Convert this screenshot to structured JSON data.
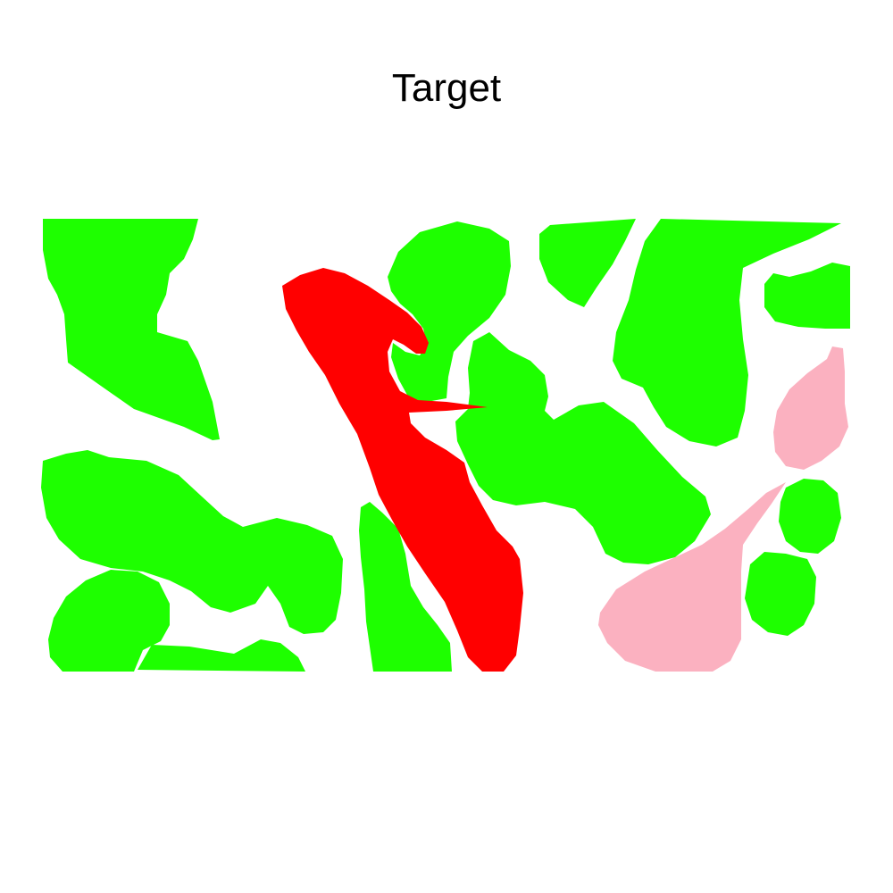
{
  "title": "Target",
  "colors": {
    "green": "#1eff00",
    "red": "#ff0000",
    "pink": "#fbb1c0",
    "background": "#ffffff"
  }
}
